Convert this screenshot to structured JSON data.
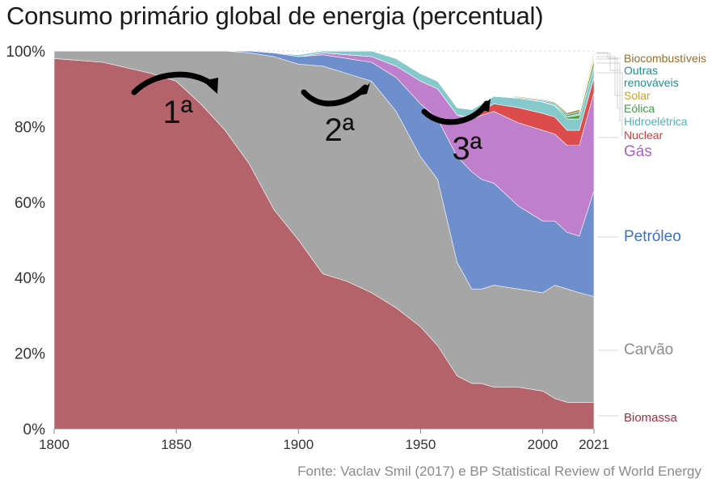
{
  "title": "Consumo primário global de energia (percentual)",
  "source": "Fonte: Vaclav Smil (2017) e BP Statistical Review of World Energy",
  "era_labels": [
    "1ª",
    "2ª",
    "3ª"
  ],
  "chart_data": {
    "type": "area",
    "stacked": true,
    "title": "Consumo primário global de energia (percentual)",
    "xlim": [
      1800,
      2021
    ],
    "ylim": [
      0,
      100
    ],
    "x_ticks": [
      1800,
      1850,
      1900,
      1950,
      2000,
      2021
    ],
    "y_ticks": [
      0,
      20,
      40,
      60,
      80,
      100
    ],
    "y_tick_labels": [
      "0%",
      "20%",
      "40%",
      "60%",
      "80%",
      "100%"
    ],
    "grid": true,
    "legend_placement": "right (direct labels)",
    "series": [
      {
        "name": "Biomassa",
        "color": "#b5636a",
        "x": [
          1800,
          1820,
          1840,
          1850,
          1860,
          1870,
          1880,
          1890,
          1900,
          1910,
          1920,
          1930,
          1940,
          1950,
          1957,
          1965,
          1971,
          1975,
          1980,
          1990,
          2000,
          2005,
          2010,
          2015,
          2021
        ],
        "values": [
          98,
          97,
          94,
          92,
          86,
          79,
          70,
          58,
          50,
          41,
          39,
          36,
          32,
          27,
          22,
          14,
          12,
          12,
          11,
          11,
          10,
          8,
          7,
          7,
          7
        ]
      },
      {
        "name": "Carvão",
        "color": "#a6a6a6",
        "x": [
          1800,
          1820,
          1840,
          1850,
          1860,
          1870,
          1880,
          1890,
          1900,
          1910,
          1920,
          1930,
          1940,
          1950,
          1957,
          1965,
          1971,
          1975,
          1980,
          1990,
          2000,
          2005,
          2010,
          2015,
          2021
        ],
        "values": [
          2,
          3,
          6,
          8,
          14,
          21,
          29.5,
          40.5,
          46.5,
          55,
          55,
          56,
          52,
          45,
          44,
          30,
          25,
          25,
          27,
          26,
          26,
          30,
          30,
          29,
          28
        ]
      },
      {
        "name": "Petróleo",
        "color": "#6e8ecc",
        "x": [
          1800,
          1820,
          1840,
          1850,
          1860,
          1870,
          1880,
          1890,
          1900,
          1910,
          1920,
          1930,
          1940,
          1950,
          1957,
          1965,
          1971,
          1975,
          1980,
          1990,
          2000,
          2005,
          2010,
          2015,
          2021
        ],
        "values": [
          0,
          0,
          0,
          0,
          0,
          0,
          0.5,
          1,
          2,
          3,
          4,
          5,
          9,
          14,
          16,
          28,
          31,
          29,
          27,
          22,
          19,
          17,
          15,
          15,
          28
        ]
      },
      {
        "name": "Gás",
        "color": "#c07fcd",
        "x": [
          1800,
          1820,
          1840,
          1850,
          1860,
          1870,
          1880,
          1890,
          1900,
          1910,
          1920,
          1930,
          1940,
          1950,
          1957,
          1965,
          1971,
          1975,
          1980,
          1990,
          2000,
          2005,
          2010,
          2015,
          2021
        ],
        "values": [
          0,
          0,
          0,
          0,
          0,
          0,
          0,
          0,
          0,
          0.5,
          1,
          1.5,
          3,
          6,
          8,
          11,
          14,
          17,
          19,
          22,
          24,
          23,
          23,
          24,
          26
        ]
      },
      {
        "name": "Nuclear",
        "color": "#dc4c4c",
        "x": [
          1800,
          1820,
          1840,
          1850,
          1860,
          1870,
          1880,
          1890,
          1900,
          1910,
          1920,
          1930,
          1940,
          1950,
          1957,
          1965,
          1971,
          1975,
          1980,
          1990,
          2000,
          2005,
          2010,
          2015,
          2021
        ],
        "values": [
          0,
          0,
          0,
          0,
          0,
          0,
          0,
          0,
          0,
          0,
          0,
          0,
          0,
          0,
          0,
          0,
          0.5,
          1,
          2,
          4,
          4.5,
          4.5,
          4,
          4,
          4
        ]
      },
      {
        "name": "Hidroelétrica",
        "color": "#86c9cc",
        "x": [
          1800,
          1820,
          1840,
          1850,
          1860,
          1870,
          1880,
          1890,
          1900,
          1910,
          1920,
          1930,
          1940,
          1950,
          1957,
          1965,
          1971,
          1975,
          1980,
          1990,
          2000,
          2005,
          2010,
          2015,
          2021
        ],
        "values": [
          0,
          0,
          0,
          0,
          0,
          0,
          0,
          0,
          0.5,
          0.5,
          1,
          1.5,
          2,
          2,
          2,
          2,
          2,
          2,
          2,
          2.5,
          3,
          3,
          3,
          3,
          3
        ]
      },
      {
        "name": "Eólica",
        "color": "#4f9e4f",
        "x": [
          1800,
          1820,
          1840,
          1850,
          1860,
          1870,
          1880,
          1890,
          1900,
          1910,
          1920,
          1930,
          1940,
          1950,
          1957,
          1965,
          1971,
          1975,
          1980,
          1990,
          2000,
          2005,
          2010,
          2015,
          2021
        ],
        "values": [
          0,
          0,
          0,
          0,
          0,
          0,
          0,
          0,
          0,
          0,
          0,
          0,
          0,
          0,
          0,
          0,
          0,
          0,
          0,
          0,
          0.1,
          0.2,
          0.5,
          1,
          1.5
        ]
      },
      {
        "name": "Solar",
        "color": "#e0b828",
        "x": [
          1800,
          1820,
          1840,
          1850,
          1860,
          1870,
          1880,
          1890,
          1900,
          1910,
          1920,
          1930,
          1940,
          1950,
          1957,
          1965,
          1971,
          1975,
          1980,
          1990,
          2000,
          2005,
          2010,
          2015,
          2021
        ],
        "values": [
          0,
          0,
          0,
          0,
          0,
          0,
          0,
          0,
          0,
          0,
          0,
          0,
          0,
          0,
          0,
          0,
          0,
          0,
          0,
          0,
          0,
          0,
          0.1,
          0.4,
          1
        ]
      },
      {
        "name": "Outras renováveis",
        "color": "#2aa8a8",
        "x": [
          1800,
          1820,
          1840,
          1850,
          1860,
          1870,
          1880,
          1890,
          1900,
          1910,
          1920,
          1930,
          1940,
          1950,
          1957,
          1965,
          1971,
          1975,
          1980,
          1990,
          2000,
          2005,
          2010,
          2015,
          2021
        ],
        "values": [
          0,
          0,
          0,
          0,
          0,
          0,
          0,
          0,
          0,
          0,
          0,
          0,
          0,
          0,
          0,
          0,
          0,
          0,
          0,
          0.2,
          0.3,
          0.4,
          0.5,
          0.5,
          0.5
        ]
      },
      {
        "name": "Biocombustíveis",
        "color": "#b88a4a",
        "x": [
          1800,
          1820,
          1840,
          1850,
          1860,
          1870,
          1880,
          1890,
          1900,
          1910,
          1920,
          1930,
          1940,
          1950,
          1957,
          1965,
          1971,
          1975,
          1980,
          1990,
          2000,
          2005,
          2010,
          2015,
          2021
        ],
        "values": [
          0,
          0,
          0,
          0,
          0,
          0,
          0,
          0,
          0,
          0,
          0,
          0,
          0,
          0,
          0,
          0,
          0,
          0,
          0,
          0.2,
          0.2,
          0.3,
          0.5,
          0.6,
          0.7
        ]
      }
    ]
  },
  "legend": [
    {
      "text": "Biocombustíveis",
      "color": "#9a6b2f"
    },
    {
      "text": "Outras",
      "color": "#1f8f96"
    },
    {
      "text": "renováveis",
      "color": "#1f8f96"
    },
    {
      "text": "Solar",
      "color": "#c9a227"
    },
    {
      "text": "Eólica",
      "color": "#3f9a4a"
    },
    {
      "text": "Hidroelétrica",
      "color": "#4fb3b8"
    },
    {
      "text": "Nuclear",
      "color": "#d63a3a"
    },
    {
      "text": "Gás",
      "color": "#b15fc4"
    },
    {
      "text": "Petróleo",
      "color": "#3f6fbf"
    },
    {
      "text": "Carvão",
      "color": "#8c8c8c"
    },
    {
      "text": "Biomassa",
      "color": "#a3303d"
    }
  ]
}
